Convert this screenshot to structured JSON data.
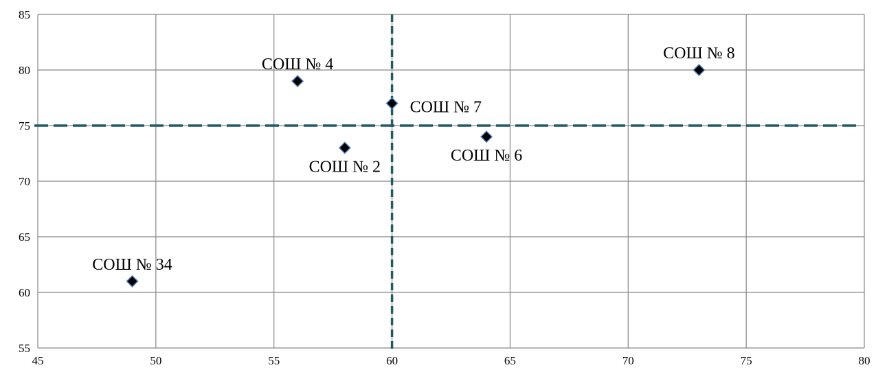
{
  "chart_data": {
    "type": "scatter",
    "title": "",
    "xlabel": "",
    "ylabel": "",
    "xlim": [
      45,
      80
    ],
    "ylim": [
      55,
      85
    ],
    "x_ticks": [
      45,
      50,
      55,
      60,
      65,
      70,
      75,
      80
    ],
    "y_ticks": [
      55,
      60,
      65,
      70,
      75,
      80,
      85
    ],
    "grid": true,
    "legend": "none",
    "reference_lines": {
      "x": 60,
      "y": 75,
      "style": "dashed",
      "color": "#215968"
    },
    "marker": {
      "shape": "diamond",
      "fill": "#000000",
      "edge": "#4F81BD"
    },
    "grid_color": "#868686",
    "points": [
      {
        "label": "СОШ № 4",
        "x": 56,
        "y": 79,
        "label_pos": "above"
      },
      {
        "label": "СОШ № 8",
        "x": 73,
        "y": 80,
        "label_pos": "above"
      },
      {
        "label": "СОШ № 7",
        "x": 60,
        "y": 77,
        "label_pos": "right"
      },
      {
        "label": "СОШ № 2",
        "x": 58,
        "y": 73,
        "label_pos": "below"
      },
      {
        "label": "СОШ № 6",
        "x": 64,
        "y": 74,
        "label_pos": "below"
      },
      {
        "label": "СОШ № 34",
        "x": 49,
        "y": 61,
        "label_pos": "above"
      }
    ]
  }
}
